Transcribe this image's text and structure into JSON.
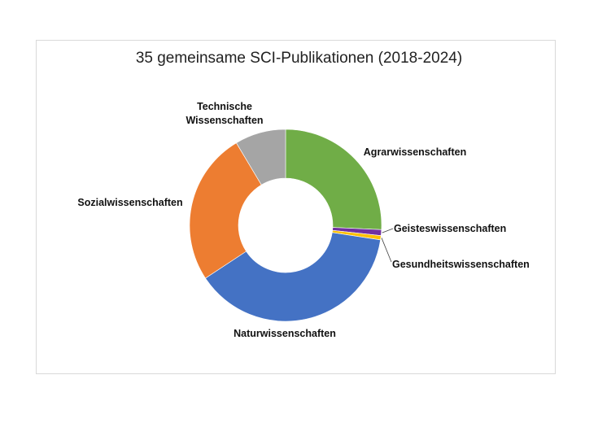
{
  "chart_data": {
    "type": "pie",
    "title": "35 gemeinsame SCI-Publikationen (2018-2024)",
    "donut": true,
    "total": 35,
    "slices": [
      {
        "label": "Agrarwissenschaften",
        "value": 9,
        "color": "#70ad47"
      },
      {
        "label": "Geisteswissenschaften",
        "value": 0.35,
        "color": "#7030a0"
      },
      {
        "label": "Gesundheitswissenschaften",
        "value": 0.25,
        "color": "#ffc000"
      },
      {
        "label": "Naturwissenschaften",
        "value": 13.4,
        "color": "#4472c4"
      },
      {
        "label": "Sozialwissenschaften",
        "value": 9,
        "color": "#ed7d31"
      },
      {
        "label": "Technische Wissenschaften",
        "value": 3,
        "color": "#a5a5a5"
      }
    ],
    "slice_label_lines": [
      [
        "Agrarwissenschaften"
      ],
      [
        "Geisteswissenschaften"
      ],
      [
        "Gesundheitswissenschaften"
      ],
      [
        "Naturwissenschaften"
      ],
      [
        "Sozialwissenschaften"
      ],
      [
        "Technische",
        "Wissenschaften"
      ]
    ],
    "legend": "none"
  }
}
